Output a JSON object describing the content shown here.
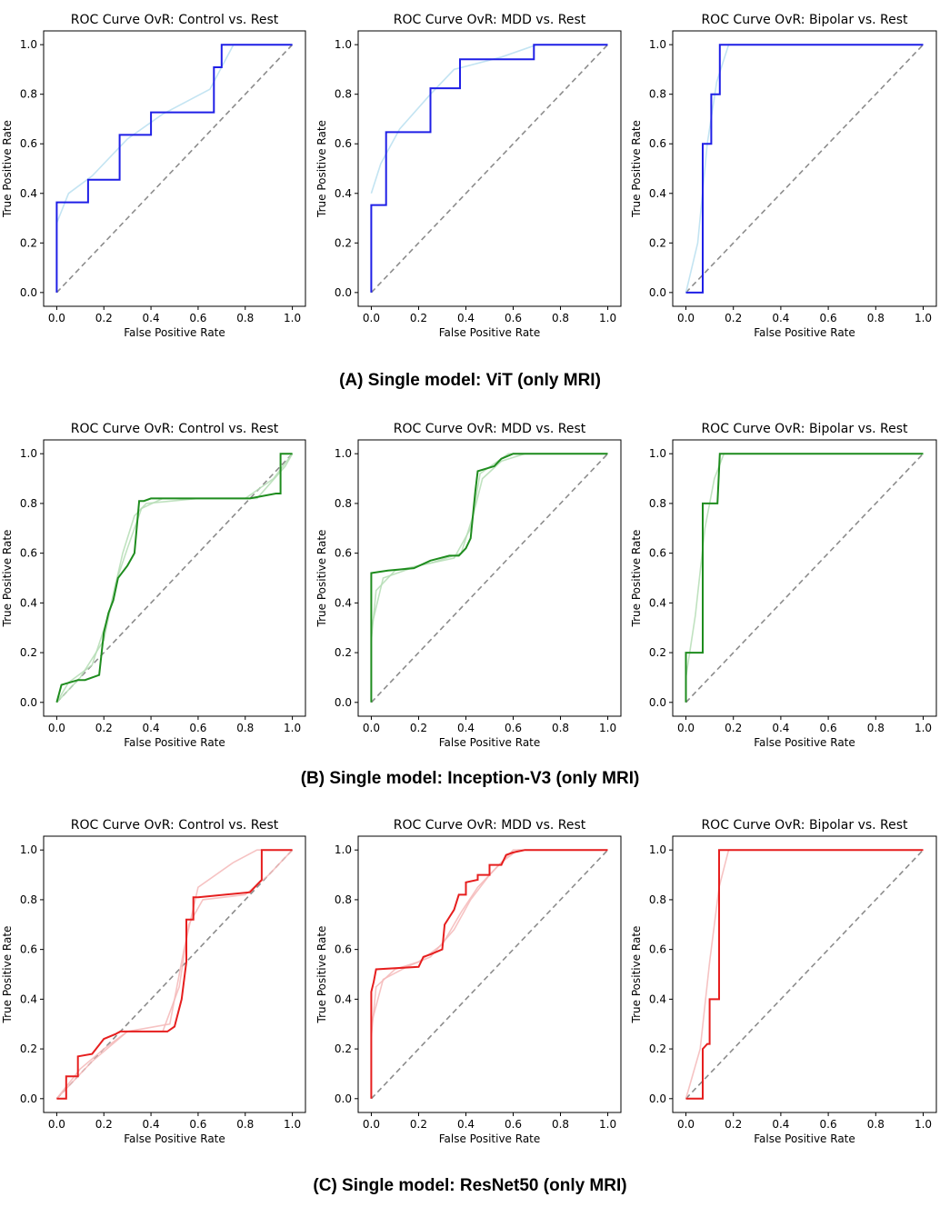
{
  "figure": {
    "rows": [
      {
        "caption": "(A) Single model: ViT (only MRI)"
      },
      {
        "caption": "(B) Single model: Inception-V3 (only MRI)"
      },
      {
        "caption": "(C) Single model: ResNet50 (only MRI)"
      }
    ]
  },
  "chart_data": [
    {
      "type": "line",
      "title": "ROC Curve OvR: Control vs. Rest",
      "xlabel": "False Positive Rate",
      "ylabel": "True Positive Rate",
      "xlim": [
        0,
        1
      ],
      "ylim": [
        0,
        1
      ],
      "xticks": [
        "0.0",
        "0.2",
        "0.4",
        "0.6",
        "0.8",
        "1.0"
      ],
      "yticks": [
        "0.0",
        "0.2",
        "0.4",
        "0.6",
        "0.8",
        "1.0"
      ],
      "color": "#1f1fe6",
      "light_color": "#b9dff0",
      "series": [
        {
          "role": "main",
          "x": [
            0,
            0,
            0.133,
            0.133,
            0.267,
            0.267,
            0.4,
            0.4,
            0.667,
            0.667,
            0.7,
            0.7,
            1
          ],
          "y": [
            0,
            0.364,
            0.364,
            0.455,
            0.455,
            0.636,
            0.636,
            0.727,
            0.727,
            0.909,
            0.909,
            1,
            1
          ]
        },
        {
          "role": "fold",
          "x": [
            0,
            0.05,
            0.15,
            0.3,
            0.45,
            0.65,
            0.75,
            1
          ],
          "y": [
            0.28,
            0.4,
            0.47,
            0.62,
            0.72,
            0.82,
            1,
            1
          ]
        }
      ],
      "diagonal": true
    },
    {
      "type": "line",
      "title": "ROC Curve OvR: MDD vs. Rest",
      "xlabel": "False Positive Rate",
      "ylabel": "True Positive Rate",
      "xlim": [
        0,
        1
      ],
      "ylim": [
        0,
        1
      ],
      "xticks": [
        "0.0",
        "0.2",
        "0.4",
        "0.6",
        "0.8",
        "1.0"
      ],
      "yticks": [
        "0.0",
        "0.2",
        "0.4",
        "0.6",
        "0.8",
        "1.0"
      ],
      "color": "#1f1fe6",
      "light_color": "#b9dff0",
      "series": [
        {
          "role": "main",
          "x": [
            0,
            0,
            0.0625,
            0.0625,
            0.25,
            0.25,
            0.375,
            0.375,
            0.6875,
            0.6875,
            1
          ],
          "y": [
            0,
            0.353,
            0.353,
            0.647,
            0.647,
            0.824,
            0.824,
            0.941,
            0.941,
            1,
            1
          ]
        },
        {
          "role": "fold",
          "x": [
            0,
            0.04,
            0.12,
            0.25,
            0.35,
            0.55,
            0.7,
            1
          ],
          "y": [
            0.4,
            0.52,
            0.66,
            0.8,
            0.9,
            0.95,
            1,
            1
          ]
        }
      ],
      "diagonal": true
    },
    {
      "type": "line",
      "title": "ROC Curve OvR: Bipolar vs. Rest",
      "xlabel": "False Positive Rate",
      "ylabel": "True Positive Rate",
      "xlim": [
        0,
        1
      ],
      "ylim": [
        0,
        1
      ],
      "xticks": [
        "0.0",
        "0.2",
        "0.4",
        "0.6",
        "0.8",
        "1.0"
      ],
      "yticks": [
        "0.0",
        "0.2",
        "0.4",
        "0.6",
        "0.8",
        "1.0"
      ],
      "color": "#1f1fe6",
      "light_color": "#b9dff0",
      "series": [
        {
          "role": "main",
          "x": [
            0,
            0.071,
            0.071,
            0.107,
            0.107,
            0.143,
            0.143,
            1
          ],
          "y": [
            0,
            0,
            0.6,
            0.6,
            0.8,
            0.8,
            1,
            1
          ]
        },
        {
          "role": "fold",
          "x": [
            0,
            0.05,
            0.09,
            0.13,
            0.18,
            1
          ],
          "y": [
            0,
            0.2,
            0.6,
            0.85,
            1,
            1
          ]
        }
      ],
      "diagonal": true
    },
    {
      "type": "line",
      "title": "ROC Curve OvR: Control vs. Rest",
      "xlabel": "False Positive Rate",
      "ylabel": "True Positive Rate",
      "xlim": [
        0,
        1
      ],
      "ylim": [
        0,
        1
      ],
      "xticks": [
        "0.0",
        "0.2",
        "0.4",
        "0.6",
        "0.8",
        "1.0"
      ],
      "yticks": [
        "0.0",
        "0.2",
        "0.4",
        "0.6",
        "0.8",
        "1.0"
      ],
      "color": "#1e8c1e",
      "light_color": "#b5ddb5",
      "series": [
        {
          "role": "main",
          "x": [
            0,
            0.02,
            0.09,
            0.12,
            0.18,
            0.2,
            0.22,
            0.24,
            0.26,
            0.3,
            0.33,
            0.35,
            0.37,
            0.4,
            0.55,
            0.82,
            0.93,
            0.95,
            0.95,
            1
          ],
          "y": [
            0,
            0.07,
            0.09,
            0.09,
            0.11,
            0.28,
            0.36,
            0.41,
            0.5,
            0.55,
            0.6,
            0.81,
            0.81,
            0.82,
            0.82,
            0.82,
            0.84,
            0.84,
            1,
            1
          ]
        },
        {
          "role": "fold",
          "x": [
            0,
            0.05,
            0.15,
            0.22,
            0.28,
            0.33,
            0.38,
            0.6,
            0.85,
            0.97,
            1
          ],
          "y": [
            0,
            0.08,
            0.15,
            0.35,
            0.6,
            0.75,
            0.8,
            0.82,
            0.82,
            0.95,
            1
          ]
        },
        {
          "role": "fold",
          "x": [
            0,
            0.1,
            0.2,
            0.25,
            0.3,
            0.36,
            0.45,
            0.8,
            0.92,
            1
          ],
          "y": [
            0,
            0.1,
            0.25,
            0.48,
            0.62,
            0.78,
            0.82,
            0.82,
            0.9,
            1
          ]
        }
      ],
      "diagonal": true
    },
    {
      "type": "line",
      "title": "ROC Curve OvR: MDD vs. Rest",
      "xlabel": "False Positive Rate",
      "ylabel": "True Positive Rate",
      "xlim": [
        0,
        1
      ],
      "ylim": [
        0,
        1
      ],
      "xticks": [
        "0.0",
        "0.2",
        "0.4",
        "0.6",
        "0.8",
        "1.0"
      ],
      "yticks": [
        "0.0",
        "0.2",
        "0.4",
        "0.6",
        "0.8",
        "1.0"
      ],
      "color": "#1e8c1e",
      "light_color": "#b5ddb5",
      "series": [
        {
          "role": "main",
          "x": [
            0,
            0,
            0.07,
            0.18,
            0.25,
            0.33,
            0.37,
            0.4,
            0.42,
            0.44,
            0.45,
            0.52,
            0.55,
            0.6,
            0.7,
            1
          ],
          "y": [
            0,
            0.52,
            0.53,
            0.54,
            0.57,
            0.59,
            0.59,
            0.62,
            0.66,
            0.85,
            0.93,
            0.95,
            0.98,
            1,
            1,
            1
          ]
        },
        {
          "role": "fold",
          "x": [
            0,
            0.02,
            0.1,
            0.25,
            0.38,
            0.43,
            0.47,
            0.55,
            0.65,
            1
          ],
          "y": [
            0.25,
            0.45,
            0.53,
            0.56,
            0.6,
            0.75,
            0.9,
            0.97,
            1,
            1
          ]
        },
        {
          "role": "fold",
          "x": [
            0,
            0.05,
            0.2,
            0.35,
            0.42,
            0.46,
            0.58,
            1
          ],
          "y": [
            0.3,
            0.5,
            0.55,
            0.58,
            0.7,
            0.92,
            1,
            1
          ]
        }
      ],
      "diagonal": true
    },
    {
      "type": "line",
      "title": "ROC Curve OvR: Bipolar vs. Rest",
      "xlabel": "False Positive Rate",
      "ylabel": "True Positive Rate",
      "xlim": [
        0,
        1
      ],
      "ylim": [
        0,
        1
      ],
      "xticks": [
        "0.0",
        "0.2",
        "0.4",
        "0.6",
        "0.8",
        "1.0"
      ],
      "yticks": [
        "0.0",
        "0.2",
        "0.4",
        "0.6",
        "0.8",
        "1.0"
      ],
      "color": "#1e8c1e",
      "light_color": "#b5ddb5",
      "series": [
        {
          "role": "main",
          "x": [
            0,
            0,
            0.071,
            0.071,
            0.133,
            0.143,
            0.143,
            1
          ],
          "y": [
            0,
            0.2,
            0.2,
            0.8,
            0.8,
            1,
            1,
            1
          ]
        },
        {
          "role": "fold",
          "x": [
            0,
            0.04,
            0.08,
            0.12,
            0.16,
            1
          ],
          "y": [
            0.1,
            0.35,
            0.7,
            0.9,
            1,
            1
          ]
        }
      ],
      "diagonal": true
    },
    {
      "type": "line",
      "title": "ROC Curve OvR: Control vs. Rest",
      "xlabel": "False Positive Rate",
      "ylabel": "True Positive Rate",
      "xlim": [
        0,
        1
      ],
      "ylim": [
        0,
        1
      ],
      "xticks": [
        "0.0",
        "0.2",
        "0.4",
        "0.6",
        "0.8",
        "1.0"
      ],
      "yticks": [
        "0.0",
        "0.2",
        "0.4",
        "0.6",
        "0.8",
        "1.0"
      ],
      "color": "#e61e1e",
      "light_color": "#f5b8b8",
      "series": [
        {
          "role": "main",
          "x": [
            0,
            0.04,
            0.04,
            0.09,
            0.09,
            0.15,
            0.2,
            0.25,
            0.27,
            0.47,
            0.5,
            0.53,
            0.55,
            0.55,
            0.58,
            0.58,
            0.6,
            0.82,
            0.85,
            0.87,
            0.87,
            1
          ],
          "y": [
            0,
            0,
            0.09,
            0.09,
            0.17,
            0.18,
            0.24,
            0.26,
            0.27,
            0.27,
            0.29,
            0.4,
            0.55,
            0.72,
            0.72,
            0.81,
            0.81,
            0.83,
            0.86,
            0.88,
            1,
            1
          ]
        },
        {
          "role": "fold",
          "x": [
            0,
            0.1,
            0.2,
            0.3,
            0.45,
            0.52,
            0.56,
            0.62,
            0.8,
            0.9,
            1
          ],
          "y": [
            0,
            0.12,
            0.2,
            0.27,
            0.27,
            0.45,
            0.7,
            0.8,
            0.82,
            0.9,
            1
          ]
        },
        {
          "role": "fold",
          "x": [
            0,
            0.15,
            0.3,
            0.48,
            0.54,
            0.6,
            0.75,
            0.85,
            1
          ],
          "y": [
            0,
            0.15,
            0.27,
            0.3,
            0.6,
            0.85,
            0.95,
            1,
            1
          ]
        }
      ],
      "diagonal": true
    },
    {
      "type": "line",
      "title": "ROC Curve OvR: MDD vs. Rest",
      "xlabel": "False Positive Rate",
      "ylabel": "True Positive Rate",
      "xlim": [
        0,
        1
      ],
      "ylim": [
        0,
        1
      ],
      "xticks": [
        "0.0",
        "0.2",
        "0.4",
        "0.6",
        "0.8",
        "1.0"
      ],
      "yticks": [
        "0.0",
        "0.2",
        "0.4",
        "0.6",
        "0.8",
        "1.0"
      ],
      "color": "#e61e1e",
      "light_color": "#f5b8b8",
      "series": [
        {
          "role": "main",
          "x": [
            0,
            0,
            0.01,
            0.02,
            0.2,
            0.22,
            0.25,
            0.3,
            0.31,
            0.33,
            0.35,
            0.37,
            0.4,
            0.4,
            0.45,
            0.45,
            0.5,
            0.5,
            0.55,
            0.57,
            0.6,
            0.65,
            1
          ],
          "y": [
            0,
            0.43,
            0.47,
            0.52,
            0.53,
            0.57,
            0.58,
            0.6,
            0.7,
            0.73,
            0.76,
            0.82,
            0.82,
            0.87,
            0.88,
            0.9,
            0.9,
            0.94,
            0.94,
            0.98,
            0.99,
            1,
            1
          ]
        },
        {
          "role": "fold",
          "x": [
            0,
            0.02,
            0.1,
            0.2,
            0.3,
            0.38,
            0.45,
            0.55,
            0.62,
            1
          ],
          "y": [
            0.25,
            0.45,
            0.52,
            0.55,
            0.62,
            0.75,
            0.85,
            0.95,
            1,
            1
          ]
        },
        {
          "role": "fold",
          "x": [
            0,
            0.05,
            0.15,
            0.25,
            0.35,
            0.42,
            0.5,
            0.6,
            1
          ],
          "y": [
            0.3,
            0.48,
            0.53,
            0.57,
            0.68,
            0.8,
            0.9,
            1,
            1
          ]
        }
      ],
      "diagonal": true
    },
    {
      "type": "line",
      "title": "ROC Curve OvR: Bipolar vs. Rest",
      "xlabel": "False Positive Rate",
      "ylabel": "True Positive Rate",
      "xlim": [
        0,
        1
      ],
      "ylim": [
        0,
        1
      ],
      "xticks": [
        "0.0",
        "0.2",
        "0.4",
        "0.6",
        "0.8",
        "1.0"
      ],
      "yticks": [
        "0.0",
        "0.2",
        "0.4",
        "0.6",
        "0.8",
        "1.0"
      ],
      "color": "#e61e1e",
      "light_color": "#f5b8b8",
      "series": [
        {
          "role": "main",
          "x": [
            0,
            0.071,
            0.071,
            0.09,
            0.1,
            0.1,
            0.14,
            0.14,
            1
          ],
          "y": [
            0,
            0,
            0.2,
            0.22,
            0.22,
            0.4,
            0.4,
            1,
            1
          ]
        },
        {
          "role": "fold",
          "x": [
            0,
            0.06,
            0.1,
            0.14,
            0.18,
            1
          ],
          "y": [
            0,
            0.2,
            0.55,
            0.85,
            1,
            1
          ]
        }
      ],
      "diagonal": true
    }
  ]
}
